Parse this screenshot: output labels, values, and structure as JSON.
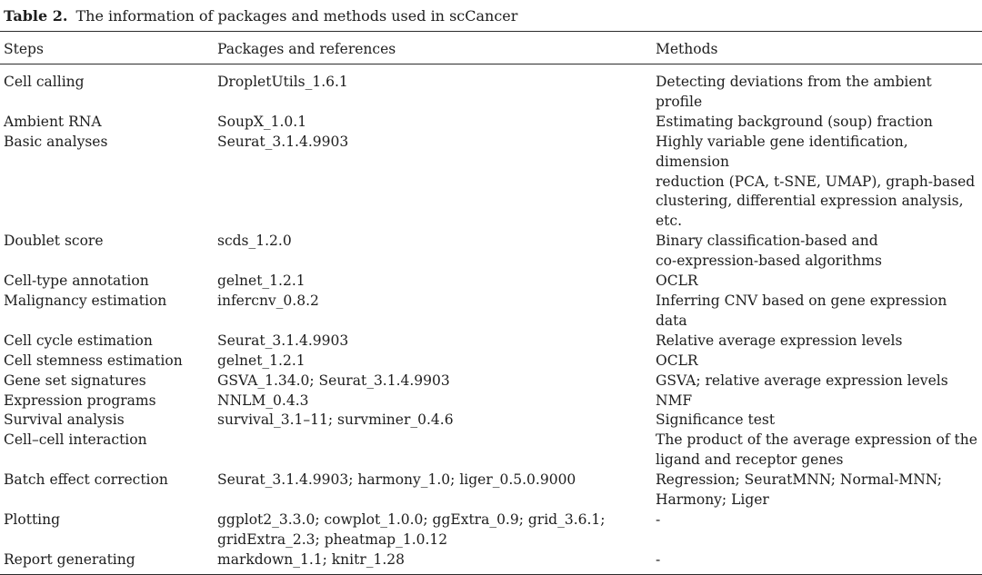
{
  "title": {
    "label": "Table 2.",
    "text": "The information of packages and methods used in scCancer"
  },
  "table": {
    "columns": [
      {
        "key": "step",
        "label": "Steps"
      },
      {
        "key": "packages",
        "label": "Packages and references"
      },
      {
        "key": "methods",
        "label": "Methods"
      }
    ],
    "rows": [
      {
        "step": "Cell calling",
        "packages": "DropletUtils_1.6.1",
        "methods": "Detecting deviations from the ambient profile"
      },
      {
        "step": "Ambient RNA",
        "packages": "SoupX_1.0.1",
        "methods": "Estimating background (soup) fraction"
      },
      {
        "step": "Basic analyses",
        "packages": "Seurat_3.1.4.9903",
        "methods": "Highly variable gene identification, dimension\nreduction (PCA, t-SNE, UMAP), graph-based\nclustering, differential expression analysis,\netc."
      },
      {
        "step": "Doublet score",
        "packages": "scds_1.2.0",
        "methods": "Binary classification-based and\nco-expression-based algorithms"
      },
      {
        "step": "Cell-type annotation",
        "packages": "gelnet_1.2.1",
        "methods": "OCLR"
      },
      {
        "step": "Malignancy estimation",
        "packages": "infercnv_0.8.2",
        "methods": "Inferring CNV based on gene expression data"
      },
      {
        "step": "Cell cycle estimation",
        "packages": "Seurat_3.1.4.9903",
        "methods": "Relative average expression levels"
      },
      {
        "step": "Cell stemness estimation",
        "packages": "gelnet_1.2.1",
        "methods": "OCLR"
      },
      {
        "step": "Gene set signatures",
        "packages": "GSVA_1.34.0; Seurat_3.1.4.9903",
        "methods": "GSVA; relative average expression levels"
      },
      {
        "step": "Expression programs",
        "packages": "NNLM_0.4.3",
        "methods": "NMF"
      },
      {
        "step": "Survival analysis",
        "packages": "survival_3.1–11; survminer_0.4.6",
        "methods": "Significance test"
      },
      {
        "step": "Cell–cell interaction",
        "packages": "",
        "methods": "The product of the average expression of the\nligand and receptor genes"
      },
      {
        "step": "Batch effect correction",
        "packages": "Seurat_3.1.4.9903; harmony_1.0; liger_0.5.0.9000",
        "methods": "Regression; SeuratMNN; Normal-MNN;\nHarmony; Liger"
      },
      {
        "step": "Plotting",
        "packages": "ggplot2_3.3.0; cowplot_1.0.0; ggExtra_0.9; grid_3.6.1;\ngridExtra_2.3; pheatmap_1.0.12",
        "methods": "-"
      },
      {
        "step": "Report generating",
        "packages": "markdown_1.1; knitr_1.28",
        "methods": "-"
      }
    ]
  }
}
